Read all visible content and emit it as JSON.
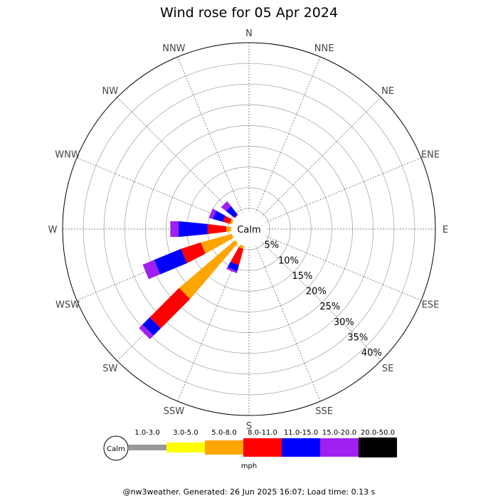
{
  "chart_data": {
    "type": "wind-rose",
    "title": "Wind rose for 05 Apr 2024",
    "directions": [
      "N",
      "NNE",
      "NE",
      "ENE",
      "E",
      "ESE",
      "SE",
      "SSE",
      "S",
      "SSW",
      "SW",
      "WSW",
      "W",
      "WNW",
      "NW",
      "NNW"
    ],
    "ring_labels": [
      "5%",
      "10%",
      "15%",
      "20%",
      "25%",
      "30%",
      "35%",
      "40%"
    ],
    "ring_values": [
      5,
      10,
      15,
      20,
      25,
      30,
      35,
      40
    ],
    "rmax": 45,
    "calm_label": "Calm",
    "unit": "mph",
    "speed_bins": [
      {
        "name": "1.0-3.0",
        "color": "#999999"
      },
      {
        "name": "3.0-5.0",
        "color": "#ffff00"
      },
      {
        "name": "5.0-8.0",
        "color": "#ffa500"
      },
      {
        "name": "8.0-11.0",
        "color": "#ff0000"
      },
      {
        "name": "11.0-15.0",
        "color": "#0000ff"
      },
      {
        "name": "15.0-20.0",
        "color": "#a020f0"
      },
      {
        "name": "20.0-50.0",
        "color": "#000000"
      }
    ],
    "series": [
      {
        "direction": "SW",
        "cumulative": [
          2.0,
          3.5,
          22.0,
          32.0,
          34.5,
          35.7
        ]
      },
      {
        "direction": "WSW",
        "cumulative": [
          2.0,
          3.5,
          12.0,
          17.0,
          24.0,
          27.0
        ]
      },
      {
        "direction": "W",
        "cumulative": [
          2.0,
          3.0,
          5.5,
          10.0,
          17.0,
          19.0
        ]
      },
      {
        "direction": "WNW",
        "cumulative": [
          2.0,
          3.2,
          4.8,
          6.5,
          9.0,
          10.0
        ]
      },
      {
        "direction": "NW",
        "cumulative": [
          2.0,
          3.0,
          3.5,
          4.5,
          7.0,
          8.5
        ]
      },
      {
        "direction": "NNW",
        "cumulative": [
          2.0,
          2.5,
          2.9,
          3.3,
          3.7,
          4.0
        ]
      },
      {
        "direction": "SSW",
        "cumulative": [
          2.0,
          3.5,
          5.0,
          9.0,
          10.5,
          11.0
        ]
      },
      {
        "direction": "S",
        "cumulative": [
          1.8,
          2.2,
          2.6,
          2.8,
          3.0,
          3.3
        ]
      }
    ]
  },
  "footer": "@nw3weather. Generated: 26 Jun 2025 16:07; Load time: 0.13 s"
}
